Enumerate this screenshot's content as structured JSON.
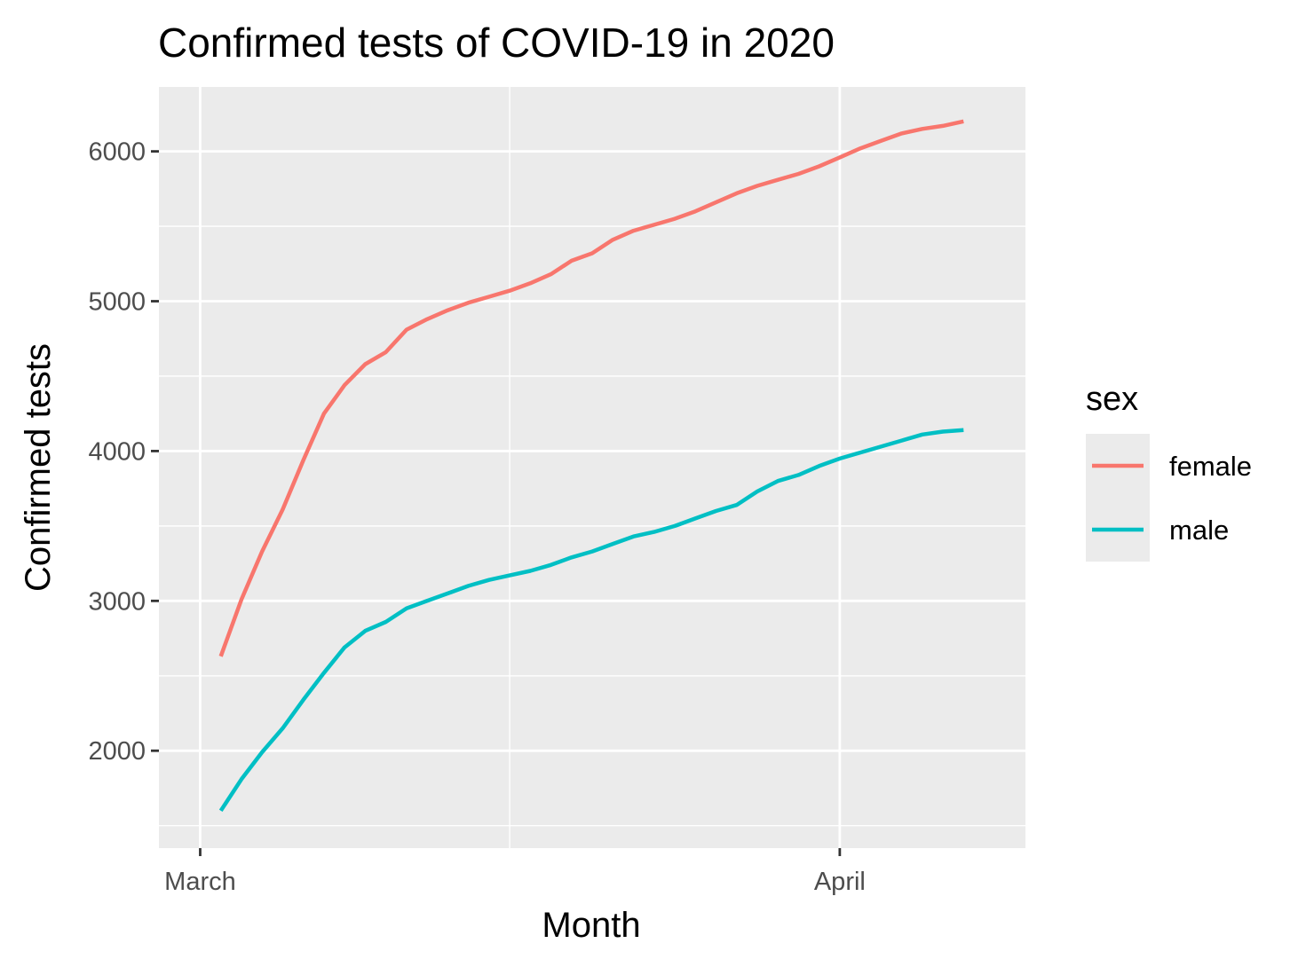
{
  "chart_data": {
    "type": "line",
    "title": "Confirmed tests of COVID-19 in 2020",
    "xlabel": "Month",
    "ylabel": "Confirmed tests",
    "x_axis": {
      "type": "date",
      "range": [
        "2020-02-28",
        "2020-04-10"
      ],
      "ticks": [
        {
          "date": "2020-03-01",
          "label": "March"
        },
        {
          "date": "2020-04-01",
          "label": "April"
        }
      ],
      "minor_gridlines": [
        "2020-03-16"
      ]
    },
    "y_axis": {
      "range": [
        1350,
        6430
      ],
      "ticks": [
        2000,
        3000,
        4000,
        5000,
        6000
      ],
      "minor_gridlines": [
        1500,
        2500,
        3500,
        4500,
        5500
      ]
    },
    "grid": true,
    "legend": {
      "title": "sex",
      "position": "right"
    },
    "x": [
      "2020-03-02",
      "2020-03-03",
      "2020-03-04",
      "2020-03-05",
      "2020-03-06",
      "2020-03-07",
      "2020-03-08",
      "2020-03-09",
      "2020-03-10",
      "2020-03-11",
      "2020-03-12",
      "2020-03-13",
      "2020-03-14",
      "2020-03-15",
      "2020-03-16",
      "2020-03-17",
      "2020-03-18",
      "2020-03-19",
      "2020-03-20",
      "2020-03-21",
      "2020-03-22",
      "2020-03-23",
      "2020-03-24",
      "2020-03-25",
      "2020-03-26",
      "2020-03-27",
      "2020-03-28",
      "2020-03-29",
      "2020-03-30",
      "2020-03-31",
      "2020-04-01",
      "2020-04-02",
      "2020-04-03",
      "2020-04-04",
      "2020-04-05",
      "2020-04-06",
      "2020-04-07"
    ],
    "series": [
      {
        "name": "female",
        "color": "#F8766D",
        "values": [
          2630,
          3010,
          3330,
          3610,
          3940,
          4250,
          4440,
          4580,
          4660,
          4810,
          4880,
          4940,
          4990,
          5030,
          5070,
          5120,
          5180,
          5270,
          5320,
          5410,
          5470,
          5510,
          5550,
          5600,
          5660,
          5720,
          5770,
          5810,
          5850,
          5900,
          5960,
          6020,
          6070,
          6120,
          6150,
          6170,
          6200
        ]
      },
      {
        "name": "male",
        "color": "#00BFC4",
        "values": [
          1600,
          1810,
          1990,
          2150,
          2340,
          2520,
          2690,
          2800,
          2860,
          2950,
          3000,
          3050,
          3100,
          3140,
          3170,
          3200,
          3240,
          3290,
          3330,
          3380,
          3430,
          3460,
          3500,
          3550,
          3600,
          3640,
          3730,
          3800,
          3840,
          3900,
          3950,
          3990,
          4030,
          4070,
          4110,
          4130,
          4140
        ]
      }
    ]
  }
}
